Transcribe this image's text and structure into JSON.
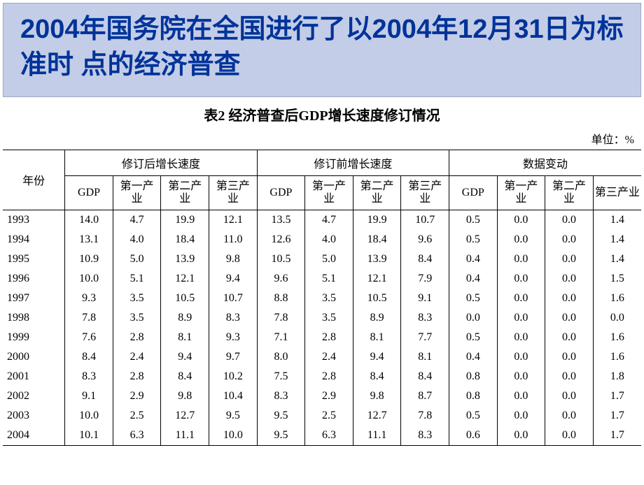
{
  "title": "2004年国务院在全国进行了以2004年12月31日为标准时 点的经济普查",
  "table": {
    "caption": "表2 经济普查后GDP增长速度修订情况",
    "unit": "单位：%",
    "year_header": "年份",
    "groups": [
      "修订后增长速度",
      "修订前增长速度",
      "数据变动"
    ],
    "sub_headers": [
      "GDP",
      "第一产业",
      "第二产业",
      "第三产业"
    ],
    "rows": [
      {
        "year": "1993",
        "a": [
          "14.0",
          "4.7",
          "19.9",
          "12.1"
        ],
        "b": [
          "13.5",
          "4.7",
          "19.9",
          "10.7"
        ],
        "c": [
          "0.5",
          "0.0",
          "0.0",
          "1.4"
        ]
      },
      {
        "year": "1994",
        "a": [
          "13.1",
          "4.0",
          "18.4",
          "11.0"
        ],
        "b": [
          "12.6",
          "4.0",
          "18.4",
          "9.6"
        ],
        "c": [
          "0.5",
          "0.0",
          "0.0",
          "1.4"
        ]
      },
      {
        "year": "1995",
        "a": [
          "10.9",
          "5.0",
          "13.9",
          "9.8"
        ],
        "b": [
          "10.5",
          "5.0",
          "13.9",
          "8.4"
        ],
        "c": [
          "0.4",
          "0.0",
          "0.0",
          "1.4"
        ]
      },
      {
        "year": "1996",
        "a": [
          "10.0",
          "5.1",
          "12.1",
          "9.4"
        ],
        "b": [
          "9.6",
          "5.1",
          "12.1",
          "7.9"
        ],
        "c": [
          "0.4",
          "0.0",
          "0.0",
          "1.5"
        ]
      },
      {
        "year": "1997",
        "a": [
          "9.3",
          "3.5",
          "10.5",
          "10.7"
        ],
        "b": [
          "8.8",
          "3.5",
          "10.5",
          "9.1"
        ],
        "c": [
          "0.5",
          "0.0",
          "0.0",
          "1.6"
        ]
      },
      {
        "year": "1998",
        "a": [
          "7.8",
          "3.5",
          "8.9",
          "8.3"
        ],
        "b": [
          "7.8",
          "3.5",
          "8.9",
          "8.3"
        ],
        "c": [
          "0.0",
          "0.0",
          "0.0",
          "0.0"
        ]
      },
      {
        "year": "1999",
        "a": [
          "7.6",
          "2.8",
          "8.1",
          "9.3"
        ],
        "b": [
          "7.1",
          "2.8",
          "8.1",
          "7.7"
        ],
        "c": [
          "0.5",
          "0.0",
          "0.0",
          "1.6"
        ]
      },
      {
        "year": "2000",
        "a": [
          "8.4",
          "2.4",
          "9.4",
          "9.7"
        ],
        "b": [
          "8.0",
          "2.4",
          "9.4",
          "8.1"
        ],
        "c": [
          "0.4",
          "0.0",
          "0.0",
          "1.6"
        ]
      },
      {
        "year": "2001",
        "a": [
          "8.3",
          "2.8",
          "8.4",
          "10.2"
        ],
        "b": [
          "7.5",
          "2.8",
          "8.4",
          "8.4"
        ],
        "c": [
          "0.8",
          "0.0",
          "0.0",
          "1.8"
        ]
      },
      {
        "year": "2002",
        "a": [
          "9.1",
          "2.9",
          "9.8",
          "10.4"
        ],
        "b": [
          "8.3",
          "2.9",
          "9.8",
          "8.7"
        ],
        "c": [
          "0.8",
          "0.0",
          "0.0",
          "1.7"
        ]
      },
      {
        "year": "2003",
        "a": [
          "10.0",
          "2.5",
          "12.7",
          "9.5"
        ],
        "b": [
          "9.5",
          "2.5",
          "12.7",
          "7.8"
        ],
        "c": [
          "0.5",
          "0.0",
          "0.0",
          "1.7"
        ]
      },
      {
        "year": "2004",
        "a": [
          "10.1",
          "6.3",
          "11.1",
          "10.0"
        ],
        "b": [
          "9.5",
          "6.3",
          "11.1",
          "8.3"
        ],
        "c": [
          "0.6",
          "0.0",
          "0.0",
          "1.7"
        ]
      }
    ]
  },
  "colors": {
    "title_bg": "#c3cde7",
    "title_border": "#9aa8c8",
    "title_text": "#003399",
    "body_text": "#000000",
    "rule": "#000000",
    "background": "#ffffff"
  },
  "typography": {
    "title_fontsize": 38,
    "caption_fontsize": 20,
    "body_fontsize": 16
  }
}
